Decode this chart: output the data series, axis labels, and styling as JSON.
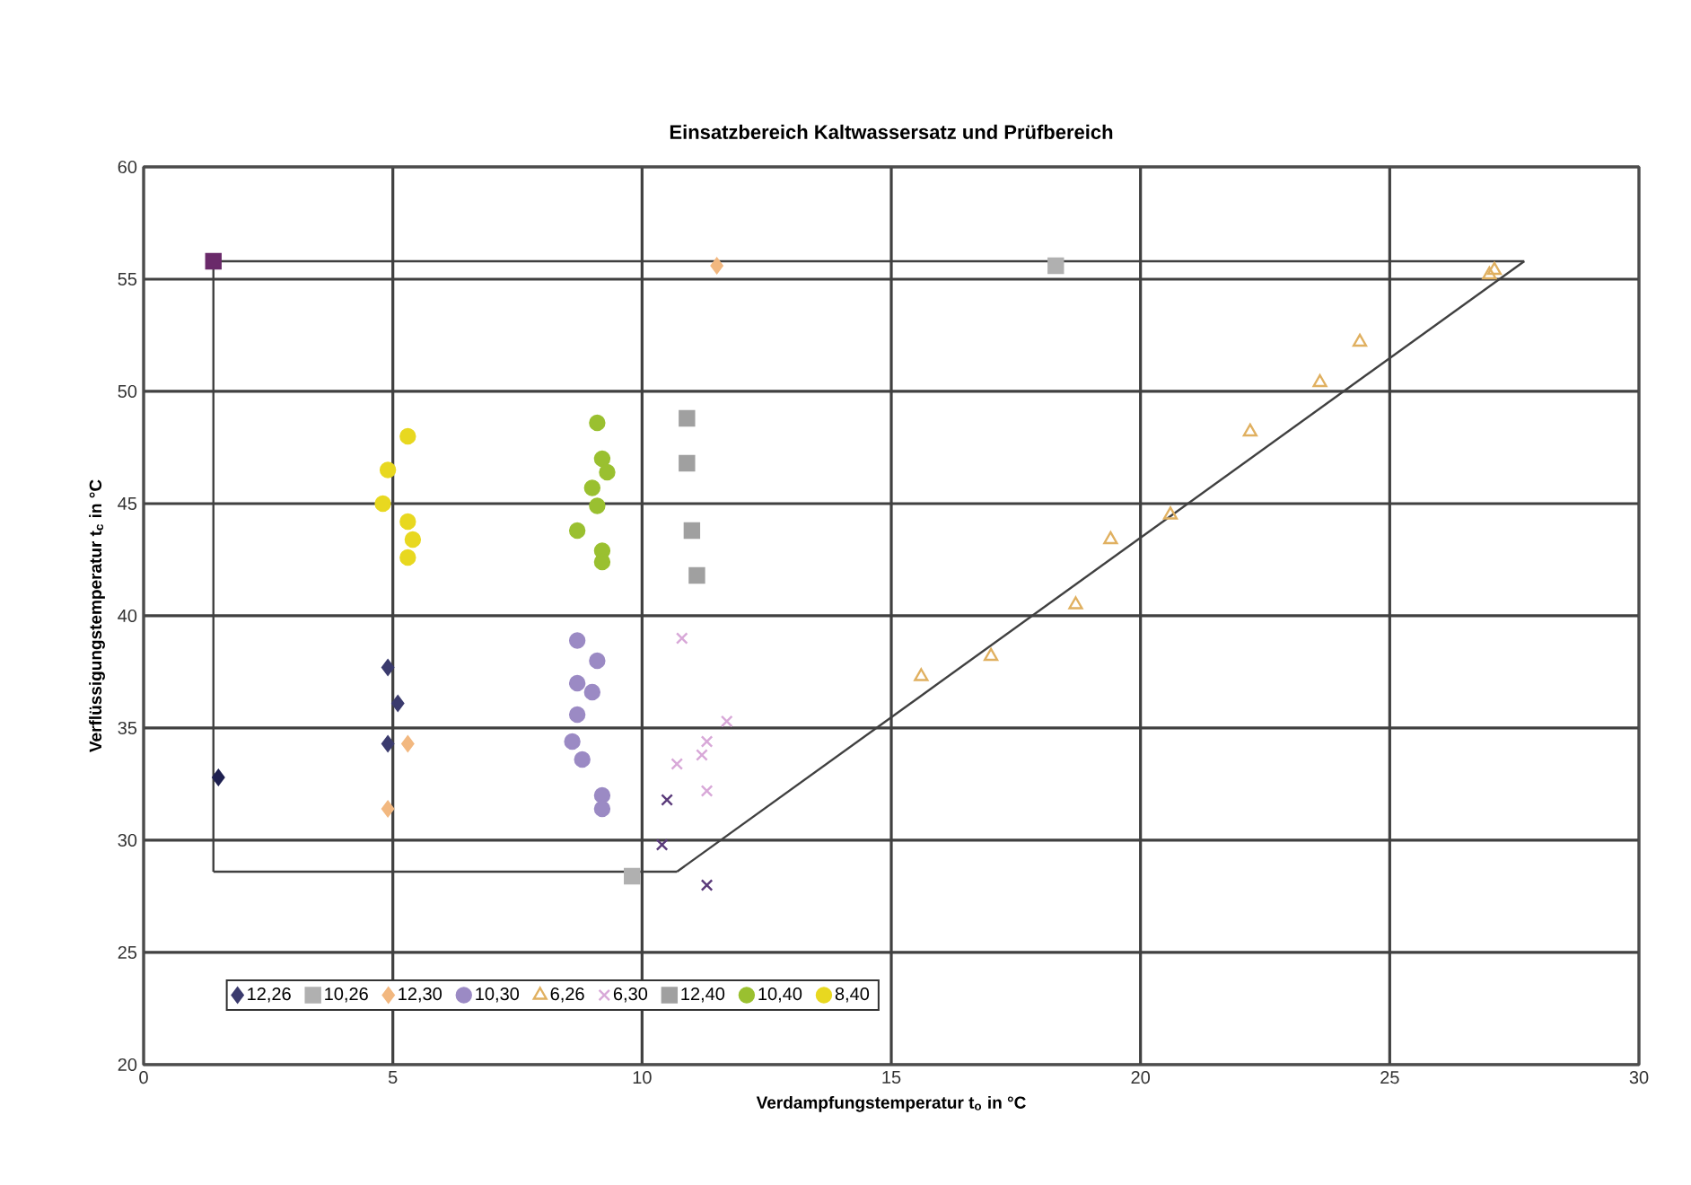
{
  "chart_data": {
    "type": "scatter",
    "title": "Einsatzbereich Kaltwassersatz und Prüfbereich",
    "xlabel": "Verdampfungstemperatur t$_{o}$ in °C",
    "ylabel": "Verflüssigungstemperatur t$_{c}$ in °C",
    "xlim": [
      0,
      30
    ],
    "ylim": [
      20,
      60
    ],
    "xticks": [
      0,
      5,
      10,
      15,
      20,
      25,
      30
    ],
    "yticks": [
      20,
      25,
      30,
      35,
      40,
      45,
      50,
      55,
      60
    ],
    "grid": true,
    "legend": "bottom left",
    "series": [
      {
        "type": "line",
        "color": "#404040",
        "line_style": "solid",
        "marker": "none",
        "x": [
          1.4,
          27.7
        ],
        "values": [
          55.8,
          55.8
        ]
      },
      {
        "type": "line",
        "color": "#404040",
        "line_style": "solid",
        "marker": "none",
        "x": [
          1.4,
          1.4
        ],
        "values": [
          55.8,
          28.6
        ]
      },
      {
        "type": "line",
        "color": "#404040",
        "line_style": "solid",
        "marker": "none",
        "x": [
          1.4,
          10.7
        ],
        "values": [
          28.6,
          28.6
        ]
      },
      {
        "type": "line",
        "color": "#404040",
        "line_style": "solid",
        "marker": "none",
        "x": [
          10.7,
          27.7
        ],
        "values": [
          28.6,
          55.8
        ]
      },
      {
        "color": "#6a2a6a",
        "marker": "square",
        "x": [
          1.4
        ],
        "values": [
          55.8
        ]
      },
      {
        "color": "#1e2050",
        "marker": "diamond",
        "x": [
          1.5
        ],
        "values": [
          32.8
        ]
      },
      {
        "name": "12,26",
        "color": "#3b3b6e",
        "marker": "diamond",
        "x": [
          4.9,
          5.1,
          4.9
        ],
        "values": [
          37.7,
          36.1,
          34.3
        ]
      },
      {
        "name": "10,26",
        "color": "#b0b0b0",
        "marker": "square",
        "x": [
          9.8,
          18.3
        ],
        "values": [
          28.4,
          55.6
        ]
      },
      {
        "name": "12,30",
        "color": "#f2b880",
        "marker": "diamond",
        "x": [
          5.3,
          4.9,
          11.5
        ],
        "values": [
          34.3,
          31.4,
          55.6
        ]
      },
      {
        "name": "10,30",
        "color": "#9b8ac4",
        "marker": "circle",
        "x": [
          8.7,
          9.1,
          8.7,
          9.0,
          8.7,
          8.6,
          8.8,
          9.2,
          9.2
        ],
        "values": [
          38.9,
          38.0,
          37.0,
          36.6,
          35.6,
          34.4,
          33.6,
          32.0,
          31.4
        ]
      },
      {
        "name": "6,26",
        "color": "#e0b060",
        "marker": "triangle",
        "x": [
          15.6,
          17.0,
          18.7,
          19.4,
          20.6,
          22.2,
          23.6,
          24.4,
          27.0,
          27.1
        ],
        "values": [
          37.3,
          38.2,
          40.5,
          43.4,
          44.5,
          48.2,
          50.4,
          52.2,
          55.2,
          55.4
        ]
      },
      {
        "name": "6,30",
        "color": "#d8a8d8",
        "marker": "cross",
        "x": [
          11.7,
          11.3,
          11.2,
          10.7,
          11.3,
          10.8
        ],
        "values": [
          35.3,
          34.4,
          33.8,
          33.4,
          32.2,
          39.0
        ]
      },
      {
        "color": "#5a3a7a",
        "marker": "cross",
        "x": [
          10.5,
          10.4,
          11.3
        ],
        "values": [
          31.8,
          29.8,
          28.0
        ]
      },
      {
        "name": "12,40",
        "color": "#a0a0a0",
        "marker": "square",
        "x": [
          10.9,
          10.9,
          11.0,
          11.1
        ],
        "values": [
          48.8,
          46.8,
          43.8,
          41.8
        ]
      },
      {
        "name": "10,40",
        "color": "#9ac030",
        "marker": "circle",
        "x": [
          9.1,
          9.2,
          9.3,
          9.0,
          9.1,
          8.7,
          9.2,
          9.2
        ],
        "values": [
          48.6,
          47.0,
          46.4,
          45.7,
          44.9,
          43.8,
          42.9,
          42.4
        ]
      },
      {
        "name": "8,40",
        "color": "#e8d820",
        "marker": "circle",
        "x": [
          5.3,
          4.9,
          4.8,
          5.3,
          5.4,
          5.3
        ],
        "values": [
          48.0,
          46.5,
          45.0,
          44.2,
          43.4,
          42.6
        ]
      }
    ]
  }
}
